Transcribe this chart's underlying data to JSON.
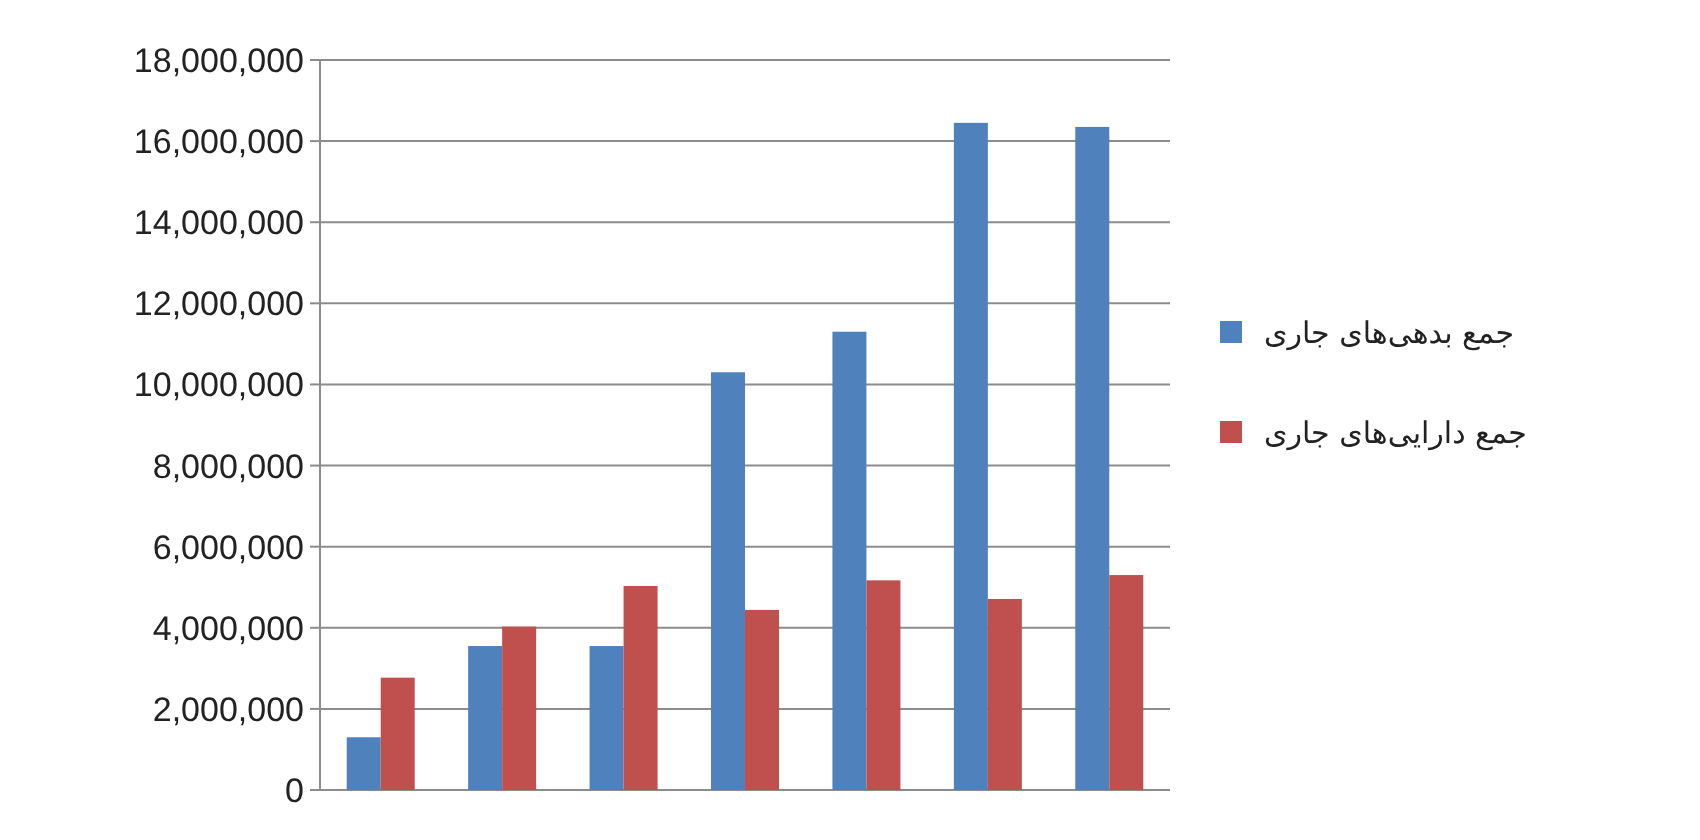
{
  "chart_data": {
    "type": "bar",
    "categories": [
      null,
      null,
      null,
      null,
      null,
      null,
      null
    ],
    "series": [
      {
        "name": "جمع بدهی‌های جاری",
        "color": "#4f81bd",
        "values": [
          1300000,
          3550000,
          3550000,
          10300000,
          11300000,
          16450000,
          16350000
        ]
      },
      {
        "name": "جمع دارایی‌های جاری",
        "color": "#c0504d",
        "values": [
          2770000,
          4030000,
          5030000,
          4440000,
          5170000,
          4710000,
          5300000
        ]
      }
    ],
    "ylim": [
      0,
      18000000
    ],
    "yticks": [
      {
        "value": 0,
        "label": "0"
      },
      {
        "value": 2000000,
        "label": "2,000,000"
      },
      {
        "value": 4000000,
        "label": "4,000,000"
      },
      {
        "value": 6000000,
        "label": "6,000,000"
      },
      {
        "value": 8000000,
        "label": "8,000,000"
      },
      {
        "value": 10000000,
        "label": "10,000,000"
      },
      {
        "value": 12000000,
        "label": "12,000,000"
      },
      {
        "value": 14000000,
        "label": "14,000,000"
      },
      {
        "value": 16000000,
        "label": "16,000,000"
      },
      {
        "value": 18000000,
        "label": "18,000,000"
      }
    ],
    "grid": "y",
    "legend": "right"
  }
}
